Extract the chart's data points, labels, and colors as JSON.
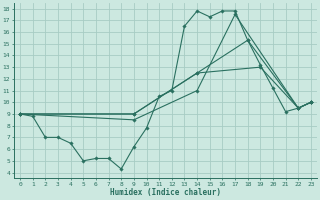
{
  "xlabel": "Humidex (Indice chaleur)",
  "bg_color": "#cce8e0",
  "grid_color": "#a8ccc4",
  "line_color": "#2a7060",
  "xlim_min": -0.5,
  "xlim_max": 23.5,
  "ylim_min": 3.5,
  "ylim_max": 18.5,
  "xticks": [
    0,
    1,
    2,
    3,
    4,
    5,
    6,
    7,
    8,
    9,
    10,
    11,
    12,
    13,
    14,
    15,
    16,
    17,
    18,
    19,
    20,
    21,
    22,
    23
  ],
  "yticks": [
    4,
    5,
    6,
    7,
    8,
    9,
    10,
    11,
    12,
    13,
    14,
    15,
    16,
    17,
    18
  ],
  "series": [
    {
      "x": [
        0,
        1,
        2,
        3,
        4,
        5,
        6,
        7,
        8,
        9,
        10,
        11,
        12,
        13,
        14,
        15,
        16,
        17,
        18,
        19,
        20,
        21,
        22,
        23
      ],
      "y": [
        9,
        8.8,
        7.0,
        7.0,
        6.5,
        5.0,
        5.2,
        5.2,
        4.3,
        6.2,
        7.8,
        10.5,
        11.0,
        16.5,
        17.8,
        17.3,
        17.8,
        17.8,
        15.3,
        13.2,
        11.2,
        9.2,
        9.5,
        10.0
      ]
    },
    {
      "x": [
        0,
        9,
        14,
        19,
        22,
        23
      ],
      "y": [
        9,
        9,
        12.5,
        13.0,
        9.5,
        10.0
      ]
    },
    {
      "x": [
        0,
        9,
        14,
        18,
        22,
        23
      ],
      "y": [
        9,
        9,
        12.5,
        15.3,
        9.5,
        10.0
      ]
    },
    {
      "x": [
        0,
        9,
        14,
        17,
        22,
        23
      ],
      "y": [
        9,
        8.5,
        11.0,
        17.5,
        9.5,
        10.0
      ]
    }
  ]
}
